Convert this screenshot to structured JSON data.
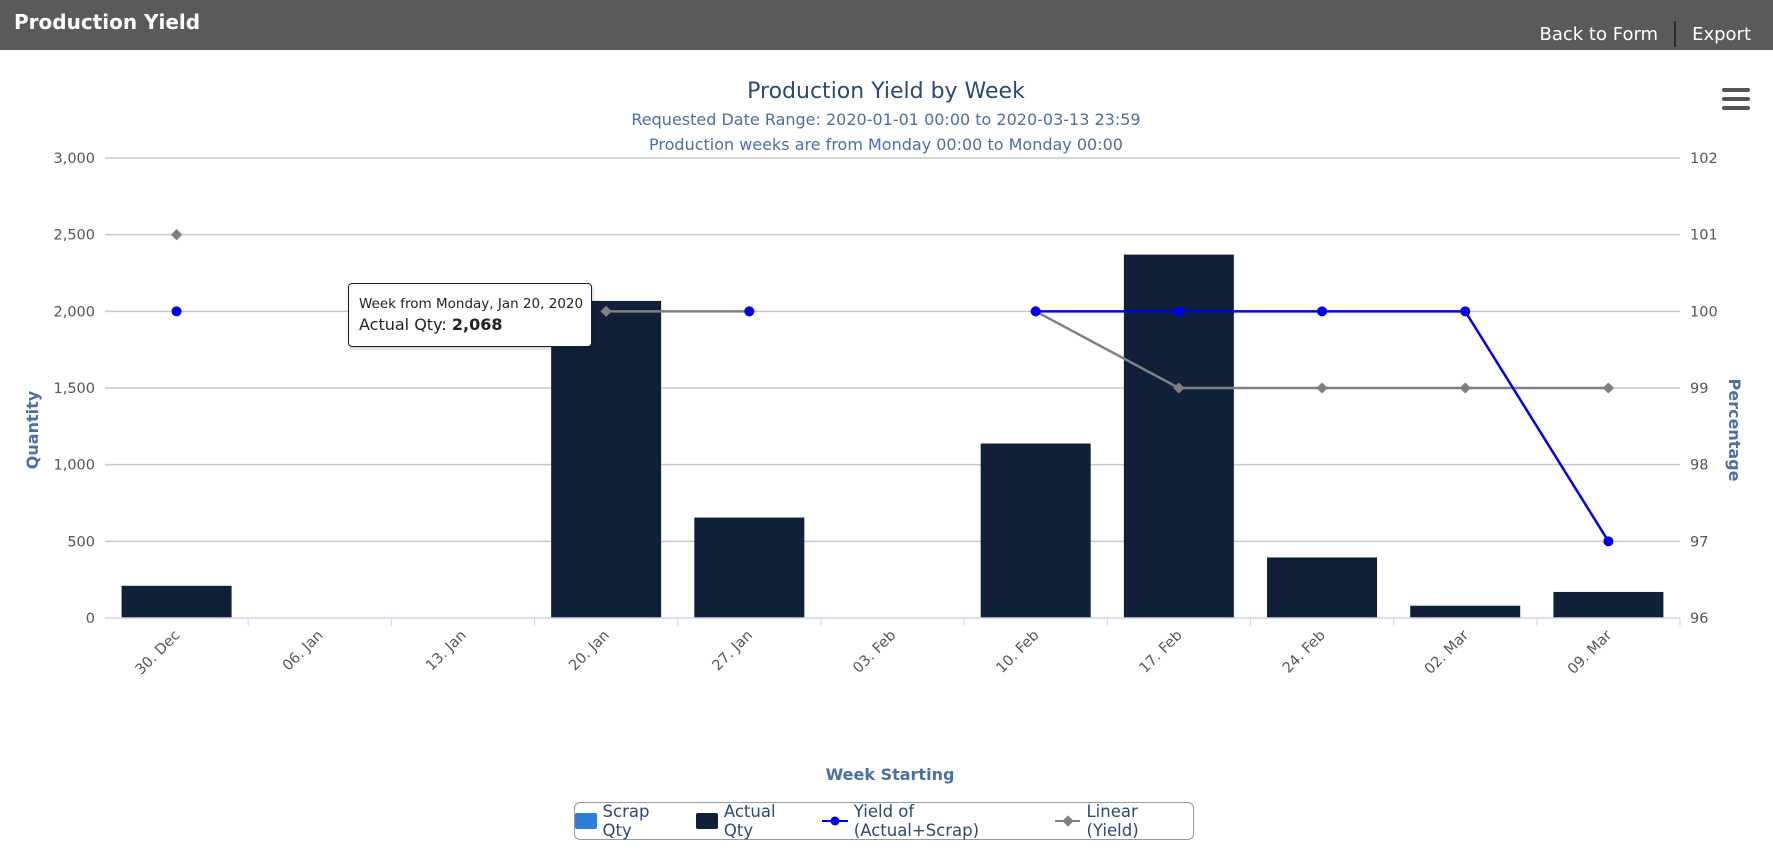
{
  "header": {
    "title": "Production Yield",
    "back_label": "Back to Form",
    "export_label": "Export"
  },
  "colors": {
    "header_bg": "#5a5a5a",
    "scrap": "#2f7ed8",
    "actual": "#0f2038",
    "yield": "#0000ee",
    "linear": "#808080",
    "title_text": "#2b4a72"
  },
  "tooltip": {
    "header": "Week from Monday, Jan 20, 2020",
    "label": "Actual Qty",
    "value": "2,068"
  },
  "chart_data": {
    "type": "bar",
    "title": "Production Yield by Week",
    "subtitle_1": "Requested Date Range: 2020-01-01 00:00 to 2020-03-13 23:59",
    "subtitle_2": "Production weeks are from Monday 00:00 to Monday 00:00",
    "xlabel": "Week Starting",
    "ylabel": "Quantity",
    "y2label": "Percentage",
    "categories": [
      "30. Dec",
      "06. Jan",
      "13. Jan",
      "20. Jan",
      "27. Jan",
      "03. Feb",
      "10. Feb",
      "17. Feb",
      "24. Feb",
      "02. Mar",
      "09. Mar"
    ],
    "ylim": [
      0,
      3000
    ],
    "yticks": [
      0,
      500,
      1000,
      1500,
      2000,
      2500,
      3000
    ],
    "ytick_labels": [
      "0",
      "500",
      "1,000",
      "1,500",
      "2,000",
      "2,500",
      "3,000"
    ],
    "y2lim": [
      96,
      102
    ],
    "y2ticks": [
      96,
      97,
      98,
      99,
      100,
      101,
      102
    ],
    "grid": true,
    "legend_position": "bottom-center",
    "series": [
      {
        "name": "Scrap Qty",
        "type": "bar",
        "axis": "left",
        "values": [
          0,
          null,
          null,
          0,
          0,
          null,
          0,
          0,
          0,
          0,
          0
        ]
      },
      {
        "name": "Actual Qty",
        "type": "bar",
        "axis": "left",
        "values": [
          210,
          null,
          null,
          2068,
          655,
          null,
          1138,
          2370,
          395,
          80,
          170
        ]
      },
      {
        "name": "Yield of (Actual+Scrap)",
        "type": "line",
        "axis": "right",
        "values": [
          100,
          null,
          null,
          null,
          100,
          null,
          100,
          100,
          100,
          100,
          97
        ]
      },
      {
        "name": "Linear (Yield)",
        "type": "line",
        "axis": "right",
        "values": [
          101,
          null,
          null,
          100,
          100,
          null,
          100,
          99,
          99,
          99,
          99
        ]
      }
    ]
  }
}
